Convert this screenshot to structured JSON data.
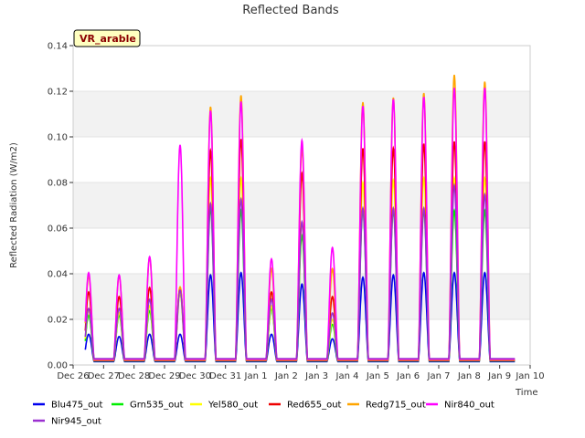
{
  "chart_data": {
    "type": "line",
    "title": "Reflected Bands",
    "xlabel": "Time",
    "ylabel": "Reflected Radiation (W/m2)",
    "annotation": "VR_arable",
    "ylim": [
      0,
      0.14
    ],
    "yticks": [
      "0.00",
      "0.02",
      "0.04",
      "0.06",
      "0.08",
      "0.10",
      "0.12",
      "0.14"
    ],
    "x_range_days": [
      "2023-12-26",
      "2024-01-10"
    ],
    "xticks": [
      "Dec 26",
      "Dec 27",
      "Dec 28",
      "Dec 29",
      "Dec 30",
      "Dec 31",
      "Jan 1",
      "Jan 2",
      "Jan 3",
      "Jan 4",
      "Jan 5",
      "Jan 6",
      "Jan 7",
      "Jan 8",
      "Jan 9",
      "Jan 10"
    ],
    "grid": "horizontal bands",
    "legend_position": "bottom",
    "days": [
      "Dec 26",
      "Dec 27",
      "Dec 28",
      "Dec 29",
      "Dec 30",
      "Dec 31",
      "Jan 1",
      "Jan 2",
      "Jan 3",
      "Jan 4",
      "Jan 5",
      "Jan 6",
      "Jan 7",
      "Jan 8",
      "Jan 9"
    ],
    "series": [
      {
        "name": "Blu475_out",
        "color": "#0000ee",
        "daily_peak": [
          0.012,
          0.011,
          0.012,
          0.012,
          0.038,
          0.039,
          0.012,
          0.034,
          0.01,
          0.037,
          0.038,
          0.039,
          0.039,
          0.039,
          0.0
        ]
      },
      {
        "name": "Grn535_out",
        "color": "#00ee00",
        "daily_peak": [
          0.02,
          0.02,
          0.022,
          0.03,
          0.067,
          0.066,
          0.023,
          0.055,
          0.016,
          0.066,
          0.066,
          0.066,
          0.066,
          0.066,
          0.0
        ]
      },
      {
        "name": "Yel580_out",
        "color": "#ffff00",
        "daily_peak": [
          0.022,
          0.021,
          0.024,
          0.03,
          0.08,
          0.08,
          0.024,
          0.06,
          0.018,
          0.078,
          0.079,
          0.08,
          0.08,
          0.08,
          0.0
        ]
      },
      {
        "name": "Red655_out",
        "color": "#ee0000",
        "daily_peak": [
          0.03,
          0.028,
          0.032,
          0.032,
          0.092,
          0.097,
          0.03,
          0.082,
          0.028,
          0.093,
          0.093,
          0.095,
          0.096,
          0.096,
          0.0
        ]
      },
      {
        "name": "Redg715_out",
        "color": "#ffa500",
        "daily_peak": [
          0.037,
          0.037,
          0.045,
          0.032,
          0.111,
          0.116,
          0.04,
          0.093,
          0.04,
          0.113,
          0.115,
          0.117,
          0.125,
          0.122,
          0.0
        ]
      },
      {
        "name": "Nir840_out",
        "color": "#ff00ff",
        "daily_peak": [
          0.038,
          0.037,
          0.045,
          0.094,
          0.109,
          0.113,
          0.044,
          0.096,
          0.049,
          0.111,
          0.114,
          0.115,
          0.119,
          0.119,
          0.0
        ]
      },
      {
        "name": "Nir945_out",
        "color": "#9b30d0",
        "daily_peak": [
          0.022,
          0.022,
          0.026,
          0.03,
          0.068,
          0.07,
          0.026,
          0.06,
          0.02,
          0.066,
          0.066,
          0.066,
          0.076,
          0.072,
          0.0
        ]
      }
    ]
  }
}
